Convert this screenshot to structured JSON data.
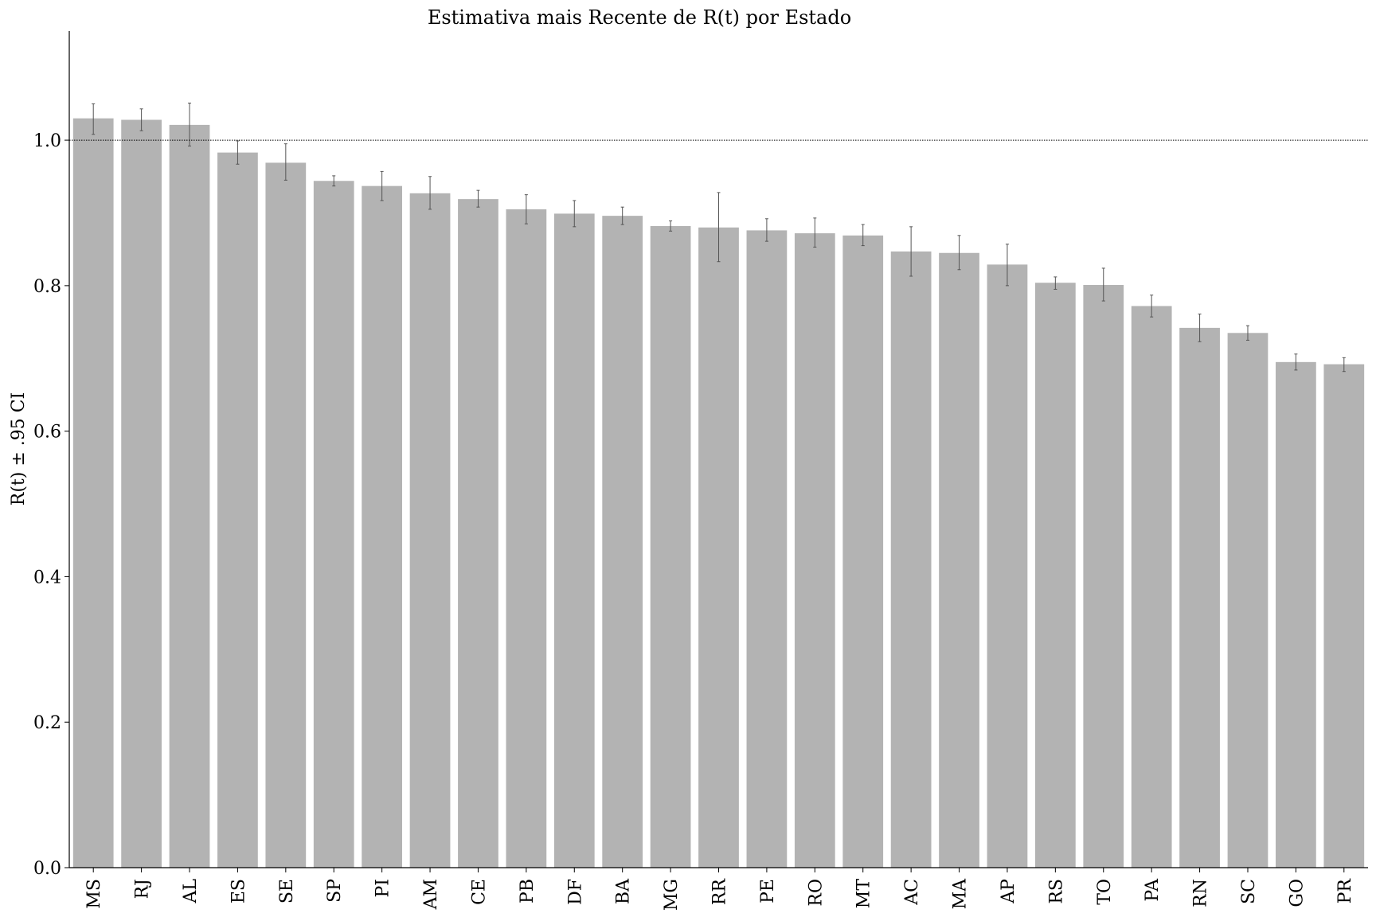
{
  "chart_data": {
    "type": "bar",
    "title": "Estimativa mais Recente de R(t) por Estado",
    "ylabel": "R(t) ± .95 CI",
    "xlabel": "",
    "ylim": [
      0,
      1.15
    ],
    "yticks": [
      "0.0",
      "0.2",
      "0.4",
      "0.6",
      "0.8",
      "1.0"
    ],
    "reference_line": 1.0,
    "grid": false,
    "bar_color": "#b3b3b3",
    "errorbar_color": "#555555",
    "categories": [
      "MS",
      "RJ",
      "AL",
      "ES",
      "SE",
      "SP",
      "PI",
      "AM",
      "CE",
      "PB",
      "DF",
      "BA",
      "MG",
      "RR",
      "PE",
      "RO",
      "MT",
      "AC",
      "MA",
      "AP",
      "RS",
      "TO",
      "PA",
      "RN",
      "SC",
      "GO",
      "PR"
    ],
    "values": [
      1.03,
      1.028,
      1.021,
      0.983,
      0.969,
      0.944,
      0.937,
      0.927,
      0.919,
      0.905,
      0.899,
      0.896,
      0.882,
      0.88,
      0.876,
      0.872,
      0.869,
      0.847,
      0.845,
      0.829,
      0.804,
      0.801,
      0.772,
      0.742,
      0.735,
      0.695,
      0.692
    ],
    "ci_low": [
      1.008,
      1.013,
      0.992,
      0.967,
      0.945,
      0.937,
      0.917,
      0.905,
      0.908,
      0.885,
      0.881,
      0.884,
      0.875,
      0.833,
      0.861,
      0.853,
      0.855,
      0.813,
      0.822,
      0.8,
      0.795,
      0.779,
      0.757,
      0.723,
      0.725,
      0.684,
      0.682
    ],
    "ci_high": [
      1.05,
      1.043,
      1.051,
      0.999,
      0.995,
      0.951,
      0.957,
      0.95,
      0.931,
      0.925,
      0.917,
      0.908,
      0.889,
      0.928,
      0.892,
      0.893,
      0.884,
      0.881,
      0.869,
      0.857,
      0.812,
      0.824,
      0.787,
      0.761,
      0.745,
      0.706,
      0.701
    ]
  }
}
